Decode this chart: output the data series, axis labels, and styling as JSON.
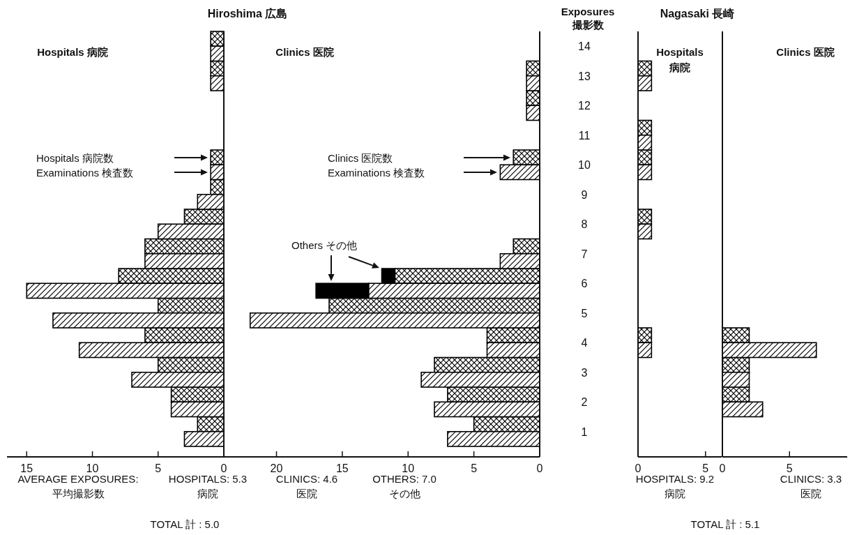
{
  "chart_data": [
    {
      "type": "bar",
      "orientation": "horizontal",
      "title": "Hiroshima 広島",
      "subtitle": "Hospitals 病院",
      "categories": [
        "14",
        "13",
        "12",
        "11",
        "10",
        "9",
        "8",
        "7",
        "6",
        "5",
        "4",
        "3",
        "2",
        "1"
      ],
      "xlim": [
        16.5,
        0
      ],
      "xticks": [
        15,
        10,
        5,
        0
      ],
      "tick_labels": "x",
      "series": [
        {
          "color": "#000000",
          "values": [
            1,
            1,
            null,
            null,
            1,
            1,
            3,
            6,
            8,
            5,
            6,
            5,
            4,
            2
          ]
        },
        {
          "color": "#000000",
          "values": [
            1,
            1,
            null,
            null,
            1,
            2,
            5,
            6,
            15,
            13,
            11,
            7,
            4,
            3
          ]
        }
      ],
      "annotations": [
        "Hospitals 病院数",
        "Examinations 検査数",
        "AVERAGE EXPOSURES:\n平均撮影数",
        "HOSPITALS: 5.3\n病院",
        "TOTAL 計 : 5.0"
      ]
    },
    {
      "type": "bar",
      "orientation": "horizontal",
      "subtitle": "Clinics 医院",
      "ylabel": "Exposures\n撮影数",
      "categories": [
        "14",
        "13",
        "12",
        "11",
        "10",
        "9",
        "8",
        "7",
        "6",
        "5",
        "4",
        "3",
        "2",
        "1"
      ],
      "xlim": [
        24,
        0
      ],
      "xticks": [
        20,
        15,
        10,
        5,
        0
      ],
      "series": [
        {
          "color": "#000000",
          "values": [
            null,
            1,
            1,
            null,
            2,
            null,
            null,
            2,
            11,
            16,
            4,
            8,
            7,
            5
          ]
        },
        {
          "color": "#000000",
          "values": [
            null,
            1,
            1,
            null,
            3,
            null,
            null,
            3,
            13,
            22,
            4,
            9,
            8,
            7
          ]
        },
        {
          "color": "#000000",
          "values": [
            null,
            null,
            null,
            null,
            null,
            null,
            null,
            null,
            1,
            null,
            null,
            null,
            null,
            null
          ],
          "base": [
            null,
            null,
            null,
            null,
            null,
            null,
            null,
            null,
            11,
            null,
            null,
            null,
            null,
            null
          ]
        },
        {
          "color": "#000000",
          "values": [
            null,
            null,
            null,
            null,
            null,
            null,
            null,
            null,
            4,
            null,
            null,
            null,
            null,
            null
          ],
          "base": [
            null,
            null,
            null,
            null,
            null,
            null,
            null,
            null,
            13,
            null,
            null,
            null,
            null,
            null
          ]
        }
      ],
      "annotations": [
        "Clinics 医院数",
        "Examinations 検査数",
        "Others その他",
        "CLINICS: 4.6\n医院",
        "OTHERS: 7.0\nその他"
      ]
    },
    {
      "type": "bar",
      "orientation": "horizontal",
      "title": "Nagasaki 長崎",
      "subtitle": "Hospitals\n病院",
      "categories": [
        "14",
        "13",
        "12",
        "11",
        "10",
        "9",
        "8",
        "7",
        "6",
        "5",
        "4",
        "3",
        "2",
        "1"
      ],
      "xlim": [
        0,
        6.2
      ],
      "xticks": [
        0,
        5
      ],
      "tick_labels": "x",
      "series": [
        {
          "color": "#000000",
          "values": [
            null,
            1,
            null,
            1,
            1,
            null,
            1,
            null,
            null,
            null,
            1,
            null,
            null,
            null
          ]
        },
        {
          "color": "#000000",
          "values": [
            null,
            1,
            null,
            1,
            1,
            null,
            1,
            null,
            null,
            null,
            1,
            null,
            null,
            null
          ]
        }
      ],
      "annotations": [
        "HOSPITALS: 9.2\n病院",
        "TOTAL 計 : 5.1"
      ]
    },
    {
      "type": "bar",
      "orientation": "horizontal",
      "subtitle": "Clinics 医院",
      "categories": [
        "14",
        "13",
        "12",
        "11",
        "10",
        "9",
        "8",
        "7",
        "6",
        "5",
        "4",
        "3",
        "2",
        "1"
      ],
      "xlim": [
        0,
        9.3
      ],
      "xticks": [
        0,
        5
      ],
      "tick_labels": "x",
      "series": [
        {
          "color": "#000000",
          "values": [
            null,
            null,
            null,
            null,
            null,
            null,
            null,
            null,
            null,
            null,
            2,
            2,
            2,
            null
          ]
        },
        {
          "color": "#000000",
          "values": [
            null,
            null,
            null,
            null,
            null,
            null,
            null,
            null,
            null,
            null,
            7,
            2,
            3,
            null
          ]
        }
      ],
      "annotations": [
        "CLINICS: 3.3\n医院"
      ]
    }
  ]
}
